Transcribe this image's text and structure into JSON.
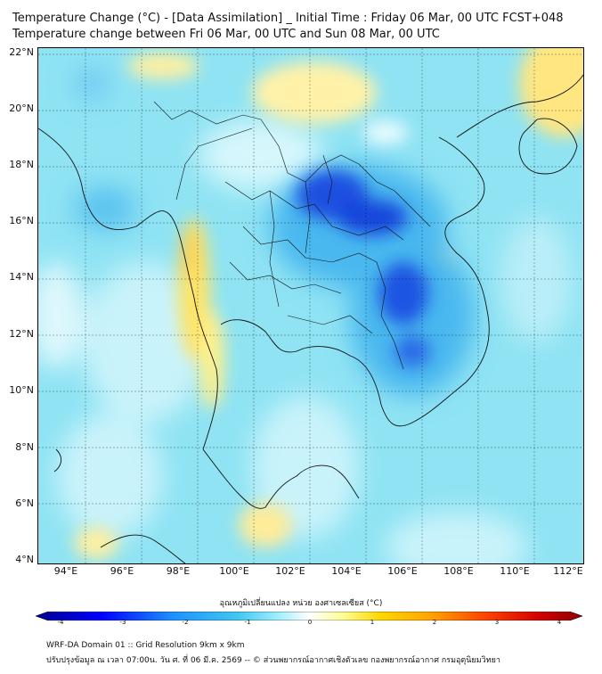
{
  "title": {
    "line1": "Temperature Change (°C) - [Data Assimilation] _ Initial Time : Friday 06 Mar, 00 UTC FCST+048",
    "line2": "Temperature change between Fri 06 Mar, 00 UTC and Sun 08 Mar, 00 UTC"
  },
  "map": {
    "lon_labels": [
      "94°E",
      "96°E",
      "98°E",
      "100°E",
      "102°E",
      "104°E",
      "106°E",
      "108°E",
      "110°E",
      "112°E"
    ],
    "lat_labels": [
      "22°N",
      "20°N",
      "18°N",
      "16°N",
      "14°N",
      "12°N",
      "10°N",
      "8°N",
      "6°N",
      "4°N"
    ],
    "lon_range": [
      93,
      113
    ],
    "lat_range": [
      4,
      22.3
    ]
  },
  "colorbar": {
    "label": "อุณหภูมิเปลี่ยนแปลง หน่วย องศาเซลเซียส (°C)",
    "ticks": [
      "-4",
      "-3",
      "-2",
      "-1",
      "0",
      "1",
      "2",
      "3",
      "4"
    ],
    "range": [
      -4,
      4
    ],
    "colors": [
      "#00008b",
      "#0000ff",
      "#1e90ff",
      "#40c8f0",
      "#aaf0ff",
      "#ffffff",
      "#ffff99",
      "#ffd700",
      "#ffa500",
      "#ff4500",
      "#d40000",
      "#8b0000"
    ]
  },
  "footer": {
    "line1": "WRF-DA Domain 01 :: Grid Resolution 9km x 9km",
    "line2": "ปรับปรุงข้อมูล ณ เวลา 07:00น. วัน ศ. ที่ 06 มี.ค. 2569 -- © ส่วนพยากรณ์อากาศเชิงตัวเลข กองพยากรณ์อากาศ กรมอุตุนิยมวิทยา"
  }
}
